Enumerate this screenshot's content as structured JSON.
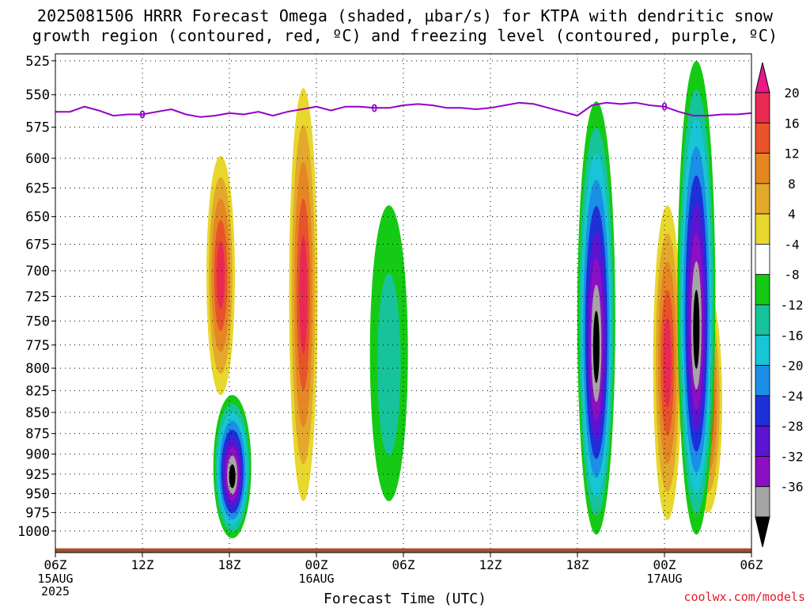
{
  "title_line1": "2025081506 HRRR Forecast Omega (shaded, µbar/s) for KTPA with dendritic snow",
  "title_line2": "growth region (contoured, red, ºC) and freezing level (contoured, purple, ºC)",
  "xaxis_title": "Forecast Time (UTC)",
  "credit": "coolwx.com/models",
  "freezing_label": "0",
  "chart_data": {
    "type": "heatmap",
    "title": "2025081506 HRRR Forecast Omega (shaded, µbar/s) for KTPA with dendritic snow growth region (contoured, red, ºC) and freezing level (contoured, purple, ºC)",
    "xlabel": "Forecast Time (UTC)",
    "ylabel": "",
    "y_scale": "pressure (log-like), inverted",
    "y_ticks": [
      525,
      550,
      575,
      600,
      625,
      650,
      675,
      700,
      725,
      750,
      775,
      800,
      825,
      850,
      875,
      900,
      925,
      950,
      975,
      1000
    ],
    "x_ticks": [
      {
        "hour": 0,
        "label": "06Z",
        "sub": [
          "15AUG",
          "2025"
        ]
      },
      {
        "hour": 6,
        "label": "12Z",
        "sub": []
      },
      {
        "hour": 12,
        "label": "18Z",
        "sub": []
      },
      {
        "hour": 18,
        "label": "00Z",
        "sub": [
          "16AUG"
        ]
      },
      {
        "hour": 24,
        "label": "06Z",
        "sub": []
      },
      {
        "hour": 30,
        "label": "12Z",
        "sub": []
      },
      {
        "hour": 36,
        "label": "18Z",
        "sub": []
      },
      {
        "hour": 42,
        "label": "00Z",
        "sub": [
          "17AUG"
        ]
      },
      {
        "hour": 48,
        "label": "06Z",
        "sub": []
      }
    ],
    "grid": true,
    "colorbar": {
      "colors": [
        "#000000",
        "#a5a5a5",
        "#8d0fc4",
        "#5a14d2",
        "#1e30d8",
        "#1b8ee6",
        "#17c5d5",
        "#16c39a",
        "#14ca14",
        "#ffffff",
        "#e8d72c",
        "#e3a92c",
        "#e48622",
        "#e8532a",
        "#e82a52",
        "#e8198a"
      ],
      "labels": [
        "-36",
        "-32",
        "-28",
        "-24",
        "-20",
        "-16",
        "-12",
        "-8",
        "-4",
        "4",
        "8",
        "12",
        "16",
        "20"
      ]
    },
    "freezing_level_mb": [
      [
        0,
        563
      ],
      [
        1,
        563
      ],
      [
        2,
        559
      ],
      [
        3,
        562
      ],
      [
        4,
        566
      ],
      [
        5,
        565
      ],
      [
        6,
        565
      ],
      [
        7,
        563
      ],
      [
        8,
        561
      ],
      [
        9,
        565
      ],
      [
        10,
        567
      ],
      [
        11,
        566
      ],
      [
        12,
        564
      ],
      [
        13,
        565
      ],
      [
        14,
        563
      ],
      [
        15,
        566
      ],
      [
        16,
        563
      ],
      [
        17,
        561
      ],
      [
        18,
        559
      ],
      [
        19,
        562
      ],
      [
        20,
        559
      ],
      [
        21,
        559
      ],
      [
        22,
        560
      ],
      [
        23,
        560
      ],
      [
        24,
        558
      ],
      [
        25,
        557
      ],
      [
        26,
        558
      ],
      [
        27,
        560
      ],
      [
        28,
        560
      ],
      [
        29,
        561
      ],
      [
        30,
        560
      ],
      [
        31,
        558
      ],
      [
        32,
        556
      ],
      [
        33,
        557
      ],
      [
        34,
        560
      ],
      [
        35,
        563
      ],
      [
        36,
        566
      ],
      [
        37,
        558
      ],
      [
        38,
        556
      ],
      [
        39,
        557
      ],
      [
        40,
        556
      ],
      [
        41,
        558
      ],
      [
        42,
        559
      ],
      [
        43,
        563
      ],
      [
        44,
        566
      ],
      [
        45,
        566
      ],
      [
        46,
        565
      ],
      [
        47,
        565
      ],
      [
        48,
        564
      ]
    ],
    "omega_features": [
      {
        "hour": 11.4,
        "top_mb": 598,
        "bottom_mb": 830,
        "peak": 18,
        "kind": "positive"
      },
      {
        "hour": 17.1,
        "top_mb": 545,
        "bottom_mb": 960,
        "peak": 20,
        "kind": "positive"
      },
      {
        "hour": 42.2,
        "top_mb": 640,
        "bottom_mb": 985,
        "peak": 20,
        "kind": "positive"
      },
      {
        "hour": 45.0,
        "top_mb": 720,
        "bottom_mb": 975,
        "peak": 20,
        "kind": "positive"
      },
      {
        "hour": 12.2,
        "top_mb": 830,
        "bottom_mb": 1010,
        "peak": -36,
        "kind": "negative"
      },
      {
        "hour": 37.3,
        "top_mb": 555,
        "bottom_mb": 1005,
        "peak": -36,
        "kind": "negative"
      },
      {
        "hour": 44.2,
        "top_mb": 525,
        "bottom_mb": 1005,
        "peak": -36,
        "kind": "negative"
      },
      {
        "hour": 23.0,
        "top_mb": 640,
        "bottom_mb": 960,
        "peak": -8,
        "kind": "negative"
      }
    ]
  }
}
